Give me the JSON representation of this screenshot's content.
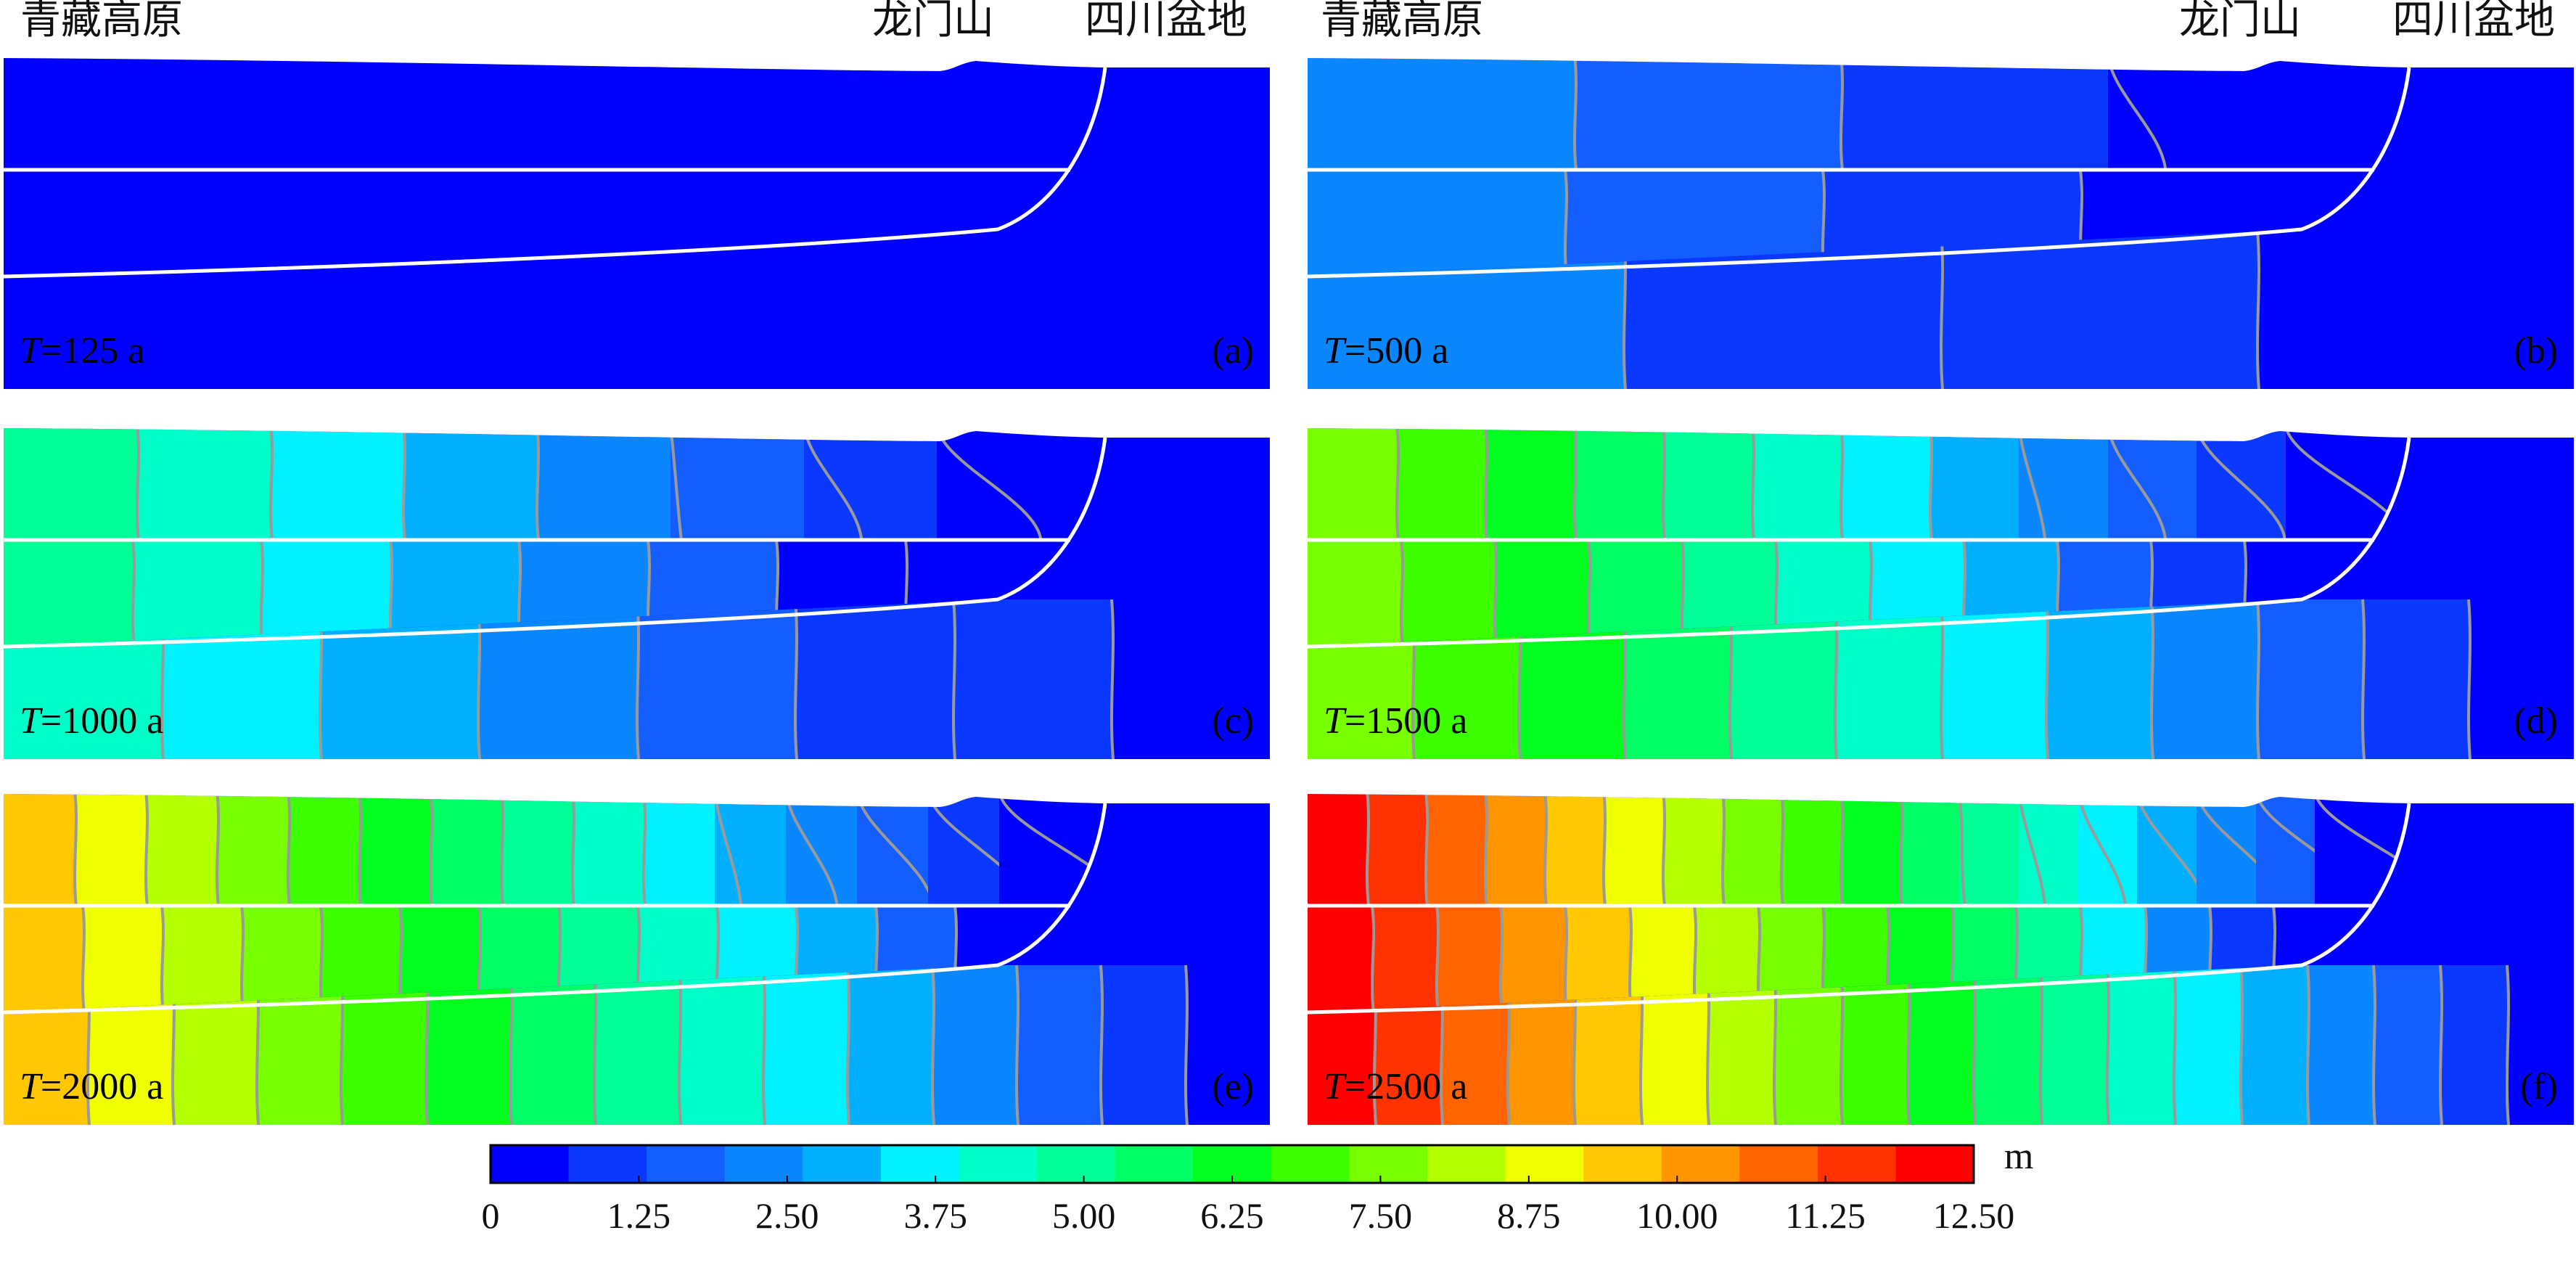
{
  "labels": {
    "left": "青藏高原",
    "middle": "龙门山",
    "right": "四川盆地"
  },
  "chart_data": {
    "type": "heatmap",
    "unit": "m",
    "colorbar": {
      "min": 0,
      "max": 12.5,
      "tick_labels": [
        "0",
        "1.25",
        "2.50",
        "3.75",
        "5.00",
        "6.25",
        "7.50",
        "8.75",
        "10.00",
        "11.25",
        "12.50"
      ],
      "colors": [
        "#0000ff",
        "#0a38ff",
        "#145eff",
        "#0a86ff",
        "#00b0ff",
        "#00f2ff",
        "#00ffc8",
        "#00ff96",
        "#00ff64",
        "#00ff1e",
        "#3cff00",
        "#78ff00",
        "#b4ff00",
        "#f0ff00",
        "#ffc800",
        "#ff9600",
        "#ff6400",
        "#ff3200",
        "#ff0000"
      ]
    },
    "panels": [
      {
        "id": "a",
        "time": "125 a",
        "tag": "(a)",
        "band_levels": [
          [
            0
          ],
          [
            0
          ],
          [
            0
          ]
        ],
        "lines": 0
      },
      {
        "id": "b",
        "time": "500 a",
        "tag": "(b)",
        "band_levels": [
          [
            3,
            2,
            1,
            0
          ],
          [
            3,
            2,
            1,
            0
          ],
          [
            3,
            1,
            0.5,
            0
          ]
        ],
        "lines": 3
      },
      {
        "id": "c",
        "time": "1000 a",
        "tag": "(c)",
        "band_levels": [
          [
            7,
            6,
            5,
            4,
            3,
            2,
            1,
            0
          ],
          [
            7,
            6,
            5,
            4,
            3,
            2,
            0,
            0
          ],
          [
            6,
            5,
            4,
            3,
            2,
            1,
            0.5,
            0
          ]
        ],
        "lines": 6
      },
      {
        "id": "d",
        "time": "1500 a",
        "tag": "(d)",
        "band_levels": [
          [
            11,
            10,
            9,
            8,
            7,
            6,
            5,
            4,
            3,
            2,
            1,
            0
          ],
          [
            11,
            10,
            9,
            8,
            7,
            6,
            5,
            4,
            2,
            1,
            0
          ],
          [
            11,
            10,
            9,
            8,
            7,
            6,
            5,
            4,
            3,
            2,
            1,
            0
          ]
        ],
        "lines": 10
      },
      {
        "id": "e",
        "time": "2000 a",
        "tag": "(e)",
        "band_levels": [
          [
            14,
            13,
            12,
            11,
            10,
            9,
            8,
            7,
            6,
            5,
            4,
            3,
            2,
            1,
            0
          ],
          [
            14,
            13,
            12,
            11,
            10,
            9,
            8,
            7,
            6,
            5,
            4,
            2,
            0
          ],
          [
            14,
            13,
            12,
            11,
            10,
            9,
            8,
            7,
            6,
            5,
            4,
            3,
            2,
            1,
            0
          ]
        ],
        "lines": 14
      },
      {
        "id": "f",
        "time": "2500 a",
        "tag": "(f)",
        "band_levels": [
          [
            18,
            17,
            16,
            15,
            14,
            13,
            12,
            11,
            10,
            9,
            8,
            7,
            6,
            5,
            4,
            3,
            2,
            0
          ],
          [
            18,
            17,
            16,
            15,
            14,
            13,
            12,
            11,
            10,
            9,
            8,
            7,
            5,
            3,
            1,
            0
          ],
          [
            18,
            17,
            16,
            15,
            14,
            13,
            12,
            11,
            10,
            9,
            8,
            7,
            6,
            5,
            4,
            3,
            2,
            1,
            0
          ]
        ],
        "lines": 18
      }
    ]
  }
}
